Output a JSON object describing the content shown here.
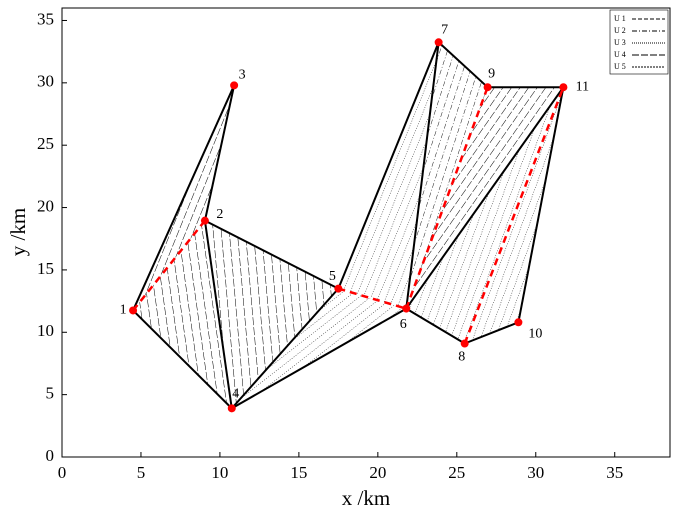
{
  "chart_data": {
    "type": "scatter",
    "x_label": "x /km",
    "y_label": "y /km",
    "point_labels": [
      "1",
      "2",
      "3",
      "4",
      "5",
      "6",
      "7",
      "8",
      "9",
      "10",
      "11"
    ],
    "x": [
      4.5,
      9.05,
      10.9,
      10.75,
      17.5,
      21.8,
      23.85,
      25.5,
      26.95,
      28.9,
      31.75
    ],
    "y": [
      11.75,
      18.95,
      29.8,
      3.9,
      13.5,
      11.9,
      33.25,
      9.1,
      29.65,
      10.8,
      29.65
    ],
    "color": "#ff0000",
    "xlim": [
      0,
      38.5
    ],
    "ylim": [
      0,
      36
    ],
    "xticks": [
      0,
      5,
      10,
      15,
      20,
      25,
      30,
      35
    ],
    "yticks": [
      0,
      5,
      10,
      15,
      20,
      25,
      30,
      35
    ],
    "legend": [
      "U 1",
      "U 2",
      "U 3",
      "U 4",
      "U 5"
    ]
  }
}
